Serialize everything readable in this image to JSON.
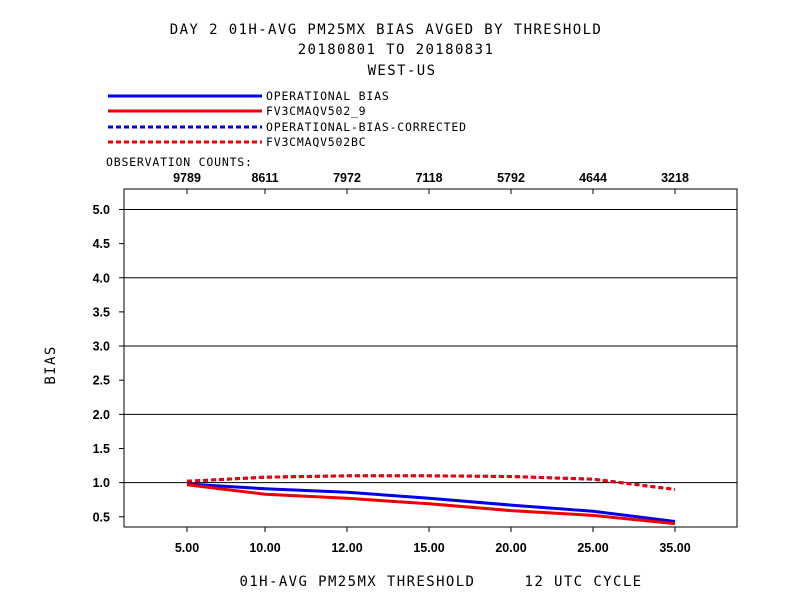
{
  "chart_data": {
    "type": "line",
    "title_lines": [
      "DAY 2   01H-AVG PM25MX BIAS   AVGED BY THRESHOLD",
      "20180801 TO 20180831",
      "WEST-US"
    ],
    "xlabel": "01H-AVG PM25MX THRESHOLD     12 UTC CYCLE",
    "ylabel": "BIAS",
    "x_ticks": [
      "5.00",
      "10.00",
      "12.00",
      "15.00",
      "20.00",
      "25.00",
      "35.00"
    ],
    "y_ticks": [
      "0.5",
      "1.0",
      "1.5",
      "2.0",
      "2.5",
      "3.0",
      "3.5",
      "4.0",
      "4.5",
      "5.0"
    ],
    "ylim": [
      0.35,
      5.3
    ],
    "grid_y": [
      1.0,
      2.0,
      3.0,
      4.0,
      5.0
    ],
    "observation_counts_label": "OBSERVATION COUNTS:",
    "observation_counts": [
      "9789",
      "8611",
      "7972",
      "7118",
      "5792",
      "4644",
      "3218"
    ],
    "legend": [
      {
        "label": "OPERATIONAL     BIAS",
        "color": "#0000ee",
        "style": "solid"
      },
      {
        "label": "FV3CMAQV502_9",
        "color": "#ee0000",
        "style": "solid"
      },
      {
        "label": "OPERATIONAL-BIAS-CORRECTED",
        "color": "#0000ee",
        "style": "dashed"
      },
      {
        "label": "FV3CMAQV502BC",
        "color": "#ee0000",
        "style": "dashed"
      }
    ],
    "series": [
      {
        "name": "OPERATIONAL",
        "color": "#0000ee",
        "style": "solid",
        "values": [
          0.98,
          0.91,
          0.86,
          0.77,
          0.67,
          0.58,
          0.43
        ]
      },
      {
        "name": "FV3CMAQV502_9",
        "color": "#ee0000",
        "style": "solid",
        "values": [
          0.97,
          0.83,
          0.77,
          0.69,
          0.59,
          0.52,
          0.4
        ]
      },
      {
        "name": "OPERATIONAL-BIAS-CORRECTED",
        "color": "#0000ee",
        "style": "dashed",
        "values": [
          1.02,
          1.08,
          1.1,
          1.1,
          1.09,
          1.05,
          0.9
        ]
      },
      {
        "name": "FV3CMAQV502BC",
        "color": "#ee0000",
        "style": "dashed",
        "values": [
          1.02,
          1.08,
          1.1,
          1.1,
          1.09,
          1.05,
          0.9
        ]
      }
    ]
  }
}
